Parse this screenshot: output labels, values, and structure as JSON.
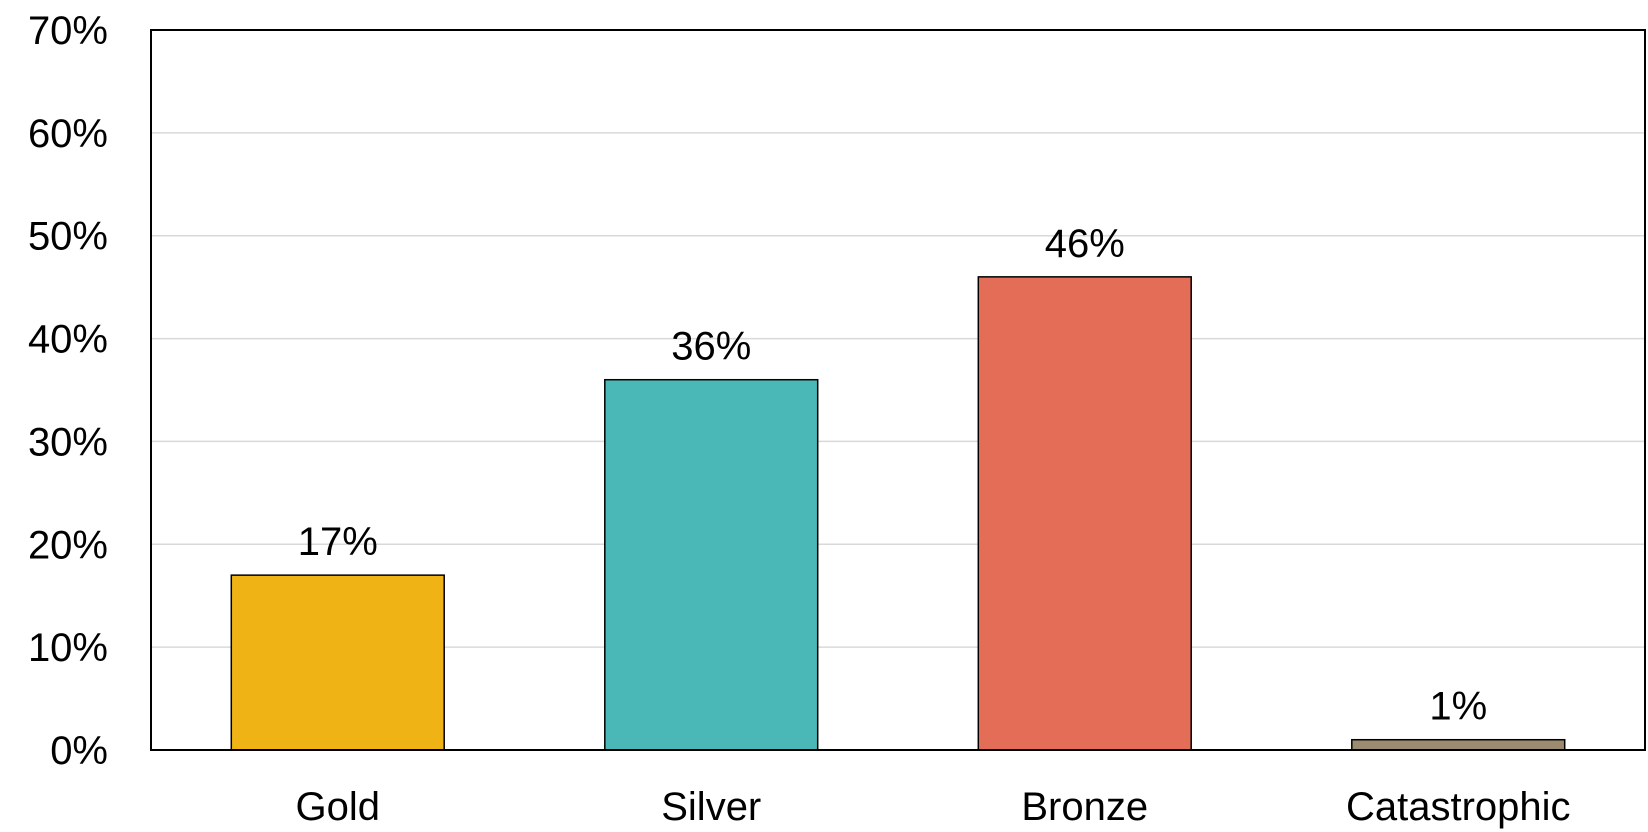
{
  "chart_data": {
    "type": "bar",
    "categories": [
      "Gold",
      "Silver",
      "Bronze",
      "Catastrophic"
    ],
    "values": [
      17,
      36,
      46,
      1
    ],
    "data_labels": [
      "17%",
      "36%",
      "46%",
      "1%"
    ],
    "colors": [
      "#EFB316",
      "#4BB8B8",
      "#E46D58",
      "#9C8B71"
    ],
    "ylim": [
      0,
      70
    ],
    "yticks": [
      0,
      10,
      20,
      30,
      40,
      50,
      60,
      70
    ],
    "ytick_labels": [
      "0%",
      "10%",
      "20%",
      "30%",
      "40%",
      "50%",
      "60%",
      "70%"
    ],
    "grid": true,
    "legend": "none"
  }
}
